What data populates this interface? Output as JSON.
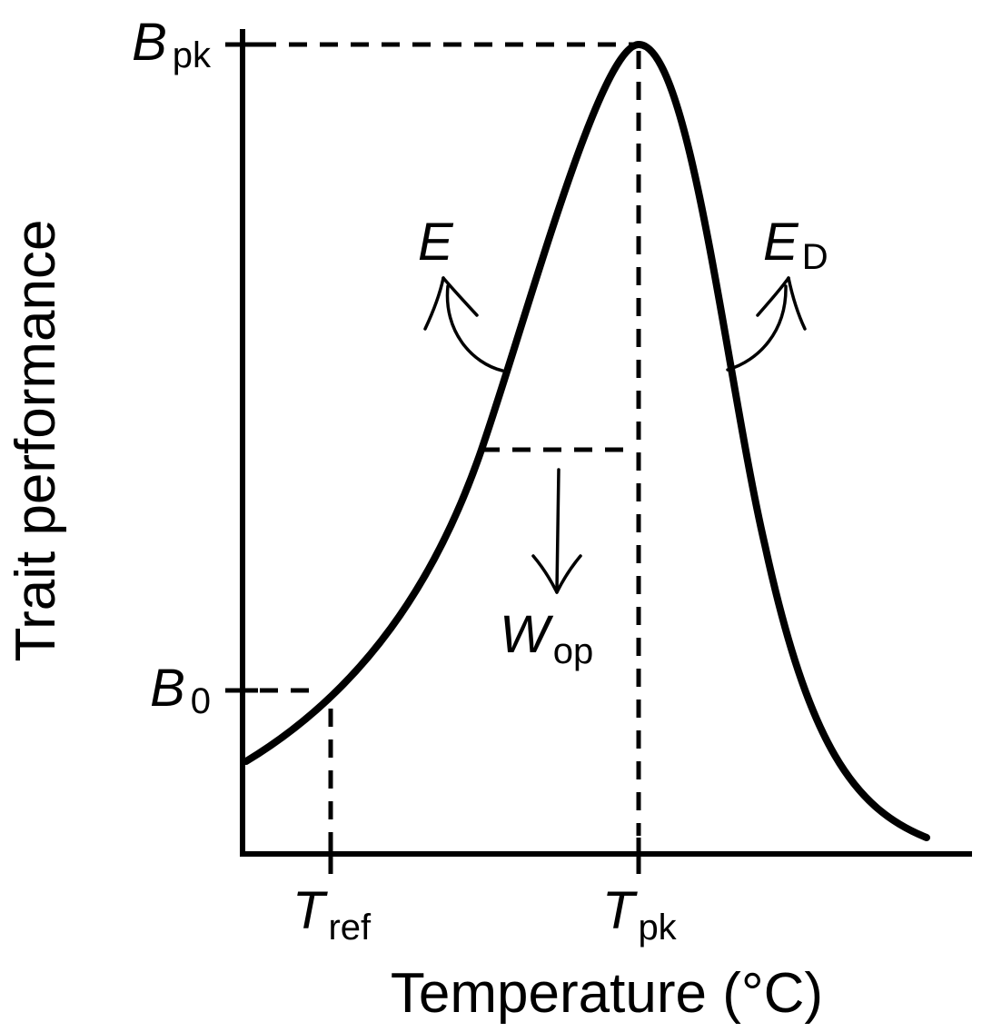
{
  "diagram": {
    "colors": {
      "ink": "#000000",
      "background": "#ffffff"
    },
    "x_axis": {
      "title": "Temperature (°C)"
    },
    "y_axis": {
      "title": "Trait performance"
    },
    "labels": {
      "b_pk": {
        "main": "B",
        "sub": "pk"
      },
      "b_0": {
        "main": "B",
        "sub": "0"
      },
      "t_ref": {
        "main": "T",
        "sub": "ref"
      },
      "t_pk": {
        "main": "T",
        "sub": "pk"
      },
      "e": {
        "main": "E",
        "sub": ""
      },
      "e_d": {
        "main": "E",
        "sub": "D"
      },
      "w_op": {
        "main": "W",
        "sub": "op"
      }
    }
  }
}
